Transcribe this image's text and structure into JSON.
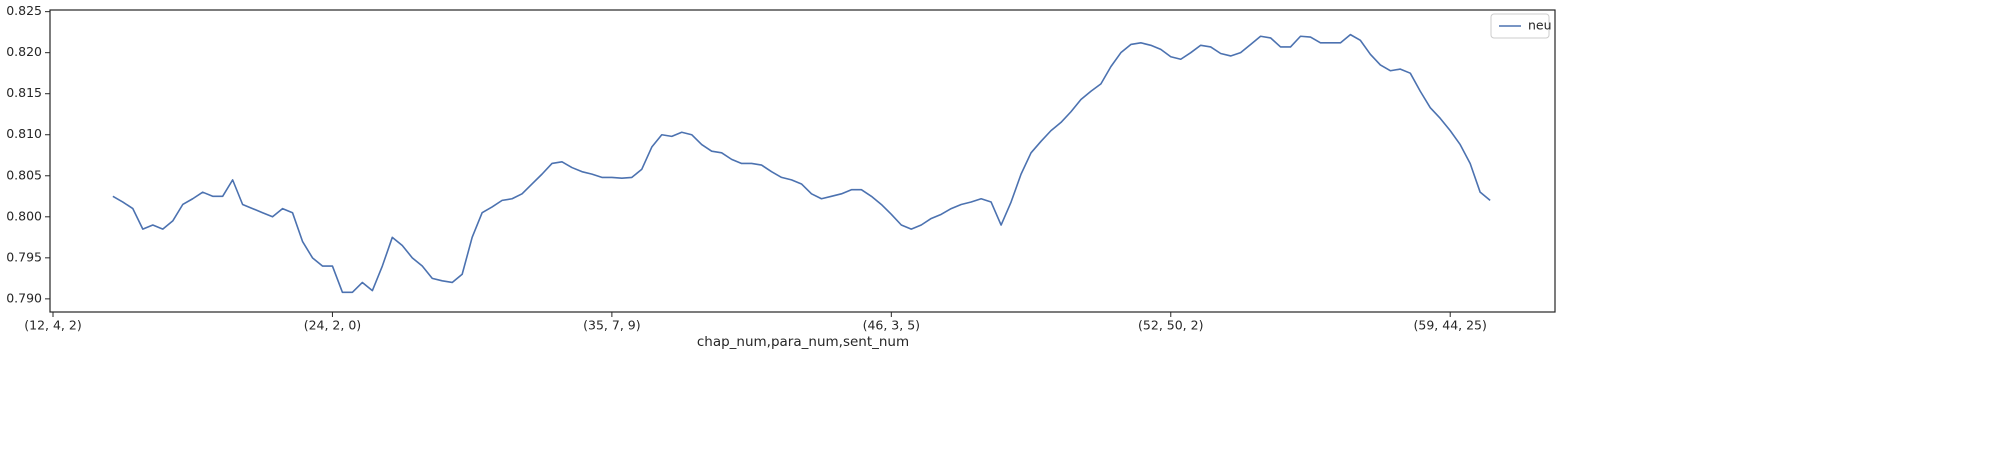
{
  "chart_data": {
    "type": "line",
    "xlabel": "chap_num,para_num,sent_num",
    "categories": [
      "(12, 4, 2)",
      null,
      null,
      null,
      null,
      null,
      null,
      null,
      null,
      null,
      null,
      null,
      null,
      null,
      null,
      null,
      null,
      null,
      null,
      null,
      null,
      null,
      null,
      null,
      null,
      null,
      null,
      null,
      "(24, 2, 0)",
      null,
      null,
      null,
      null,
      null,
      null,
      null,
      null,
      null,
      null,
      null,
      null,
      null,
      null,
      null,
      null,
      null,
      null,
      null,
      null,
      null,
      null,
      null,
      null,
      null,
      null,
      null,
      "(35, 7, 9)",
      null,
      null,
      null,
      null,
      null,
      null,
      null,
      null,
      null,
      null,
      null,
      null,
      null,
      null,
      null,
      null,
      null,
      null,
      null,
      null,
      null,
      null,
      null,
      null,
      null,
      null,
      null,
      "(46, 3, 5)",
      null,
      null,
      null,
      null,
      null,
      null,
      null,
      null,
      null,
      null,
      null,
      null,
      null,
      null,
      null,
      null,
      null,
      null,
      null,
      null,
      null,
      null,
      null,
      null,
      null,
      null,
      null,
      "(52, 50, 2)",
      null,
      null,
      null,
      null,
      null,
      null,
      null,
      null,
      null,
      null,
      null,
      null,
      null,
      null,
      null,
      null,
      null,
      null,
      null,
      null,
      null,
      null,
      null,
      null,
      null,
      null,
      null,
      "(59, 44, 25)",
      null,
      null,
      null,
      null
    ],
    "series": [
      {
        "name": "neu",
        "color": "#4c72b0",
        "values": [
          null,
          null,
          null,
          null,
          null,
          null,
          0.8025,
          0.8018,
          0.801,
          0.7985,
          0.799,
          0.7985,
          0.7995,
          0.8015,
          0.8022,
          0.803,
          0.8025,
          0.8025,
          0.8045,
          0.8015,
          0.801,
          0.8005,
          0.8,
          0.801,
          0.8005,
          0.797,
          0.795,
          0.794,
          0.794,
          0.7908,
          0.7908,
          0.792,
          0.791,
          0.794,
          0.7975,
          0.7965,
          0.795,
          0.794,
          0.7925,
          0.7922,
          0.792,
          0.793,
          0.7975,
          0.8005,
          0.8012,
          0.802,
          0.8022,
          0.8028,
          0.804,
          0.8052,
          0.8065,
          0.8067,
          0.806,
          0.8055,
          0.8052,
          0.8048,
          0.8048,
          0.8047,
          0.8048,
          0.8058,
          0.8085,
          0.81,
          0.8098,
          0.8103,
          0.81,
          0.8088,
          0.808,
          0.8078,
          0.807,
          0.8065,
          0.8065,
          0.8063,
          0.8055,
          0.8048,
          0.8045,
          0.804,
          0.8028,
          0.8022,
          0.8025,
          0.8028,
          0.8033,
          0.8033,
          0.8025,
          0.8015,
          0.8003,
          0.799,
          0.7985,
          0.799,
          0.7998,
          0.8003,
          0.801,
          0.8015,
          0.8018,
          0.8022,
          0.8018,
          0.799,
          0.8018,
          0.8052,
          0.8078,
          0.8092,
          0.8105,
          0.8115,
          0.8128,
          0.8143,
          0.8153,
          0.8162,
          0.8183,
          0.82,
          0.821,
          0.8212,
          0.8209,
          0.8204,
          0.8195,
          0.8192,
          0.82,
          0.8209,
          0.8207,
          0.8199,
          0.8196,
          0.82,
          0.821,
          0.822,
          0.8218,
          0.8207,
          0.8207,
          0.822,
          0.8219,
          0.8212,
          0.8212,
          0.8212,
          0.8222,
          0.8215,
          0.8198,
          0.8185,
          0.8178,
          0.818,
          0.8175,
          0.8153,
          0.8133,
          0.812,
          0.8105,
          0.8088,
          0.8065,
          0.803,
          0.802
        ]
      }
    ],
    "xlim": [
      -0.3,
      150.5
    ],
    "ylim": [
      0.7884,
      0.8252
    ],
    "yticks": [
      {
        "value": 0.79,
        "label": "0.790"
      },
      0.795,
      {
        "value": 0.8,
        "label": "0.800"
      },
      0.805,
      {
        "value": 0.81,
        "label": "0.810"
      },
      0.815,
      {
        "value": 0.82,
        "label": "0.820"
      },
      0.825
    ],
    "legend": "upper right",
    "grid": false
  }
}
